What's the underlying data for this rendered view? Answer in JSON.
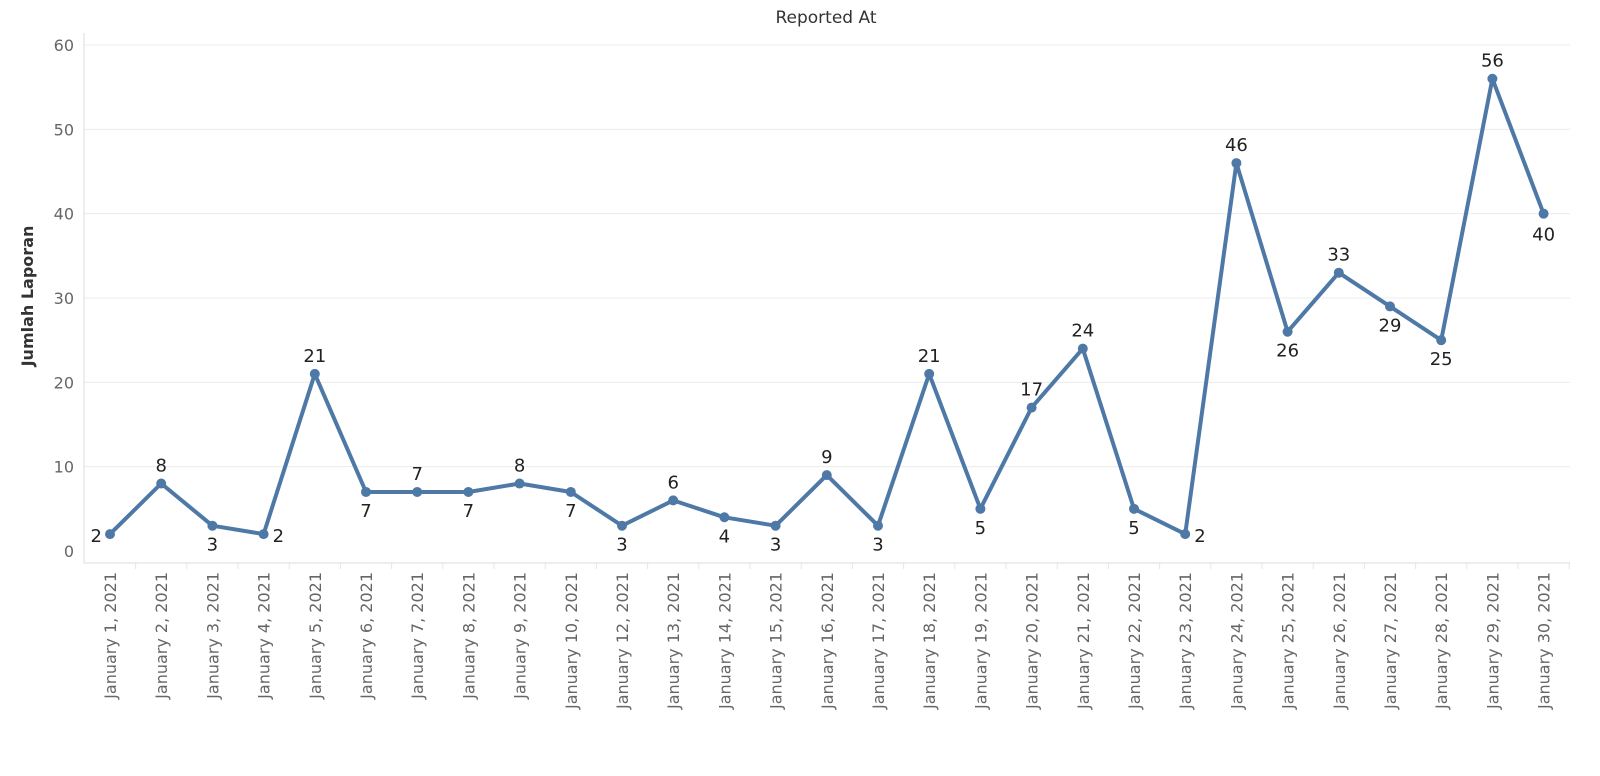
{
  "chart_data": {
    "type": "line",
    "title": "Reported At",
    "xlabel": "",
    "ylabel": "Jumlah Laporan",
    "ylim": [
      0,
      60
    ],
    "yticks": [
      0,
      10,
      20,
      30,
      40,
      50,
      60
    ],
    "grid": true,
    "legend": "none",
    "color": "#4e79a7",
    "categories": [
      "January 1, 2021",
      "January 2, 2021",
      "January 3, 2021",
      "January 4, 2021",
      "January 5, 2021",
      "January 6, 2021",
      "January 7, 2021",
      "January 8, 2021",
      "January 9, 2021",
      "January 10, 2021",
      "January 12, 2021",
      "January 13, 2021",
      "January 14, 2021",
      "January 15, 2021",
      "January 16, 2021",
      "January 17, 2021",
      "January 18, 2021",
      "January 19, 2021",
      "January 20, 2021",
      "January 21, 2021",
      "January 22, 2021",
      "January 23, 2021",
      "January 24, 2021",
      "January 25, 2021",
      "January 26, 2021",
      "January 27, 2021",
      "January 28, 2021",
      "January 29, 2021",
      "January 30, 2021"
    ],
    "values": [
      2,
      8,
      3,
      2,
      21,
      7,
      7,
      7,
      8,
      7,
      3,
      6,
      4,
      3,
      9,
      3,
      21,
      5,
      17,
      24,
      5,
      2,
      46,
      26,
      33,
      29,
      25,
      56,
      40
    ]
  }
}
